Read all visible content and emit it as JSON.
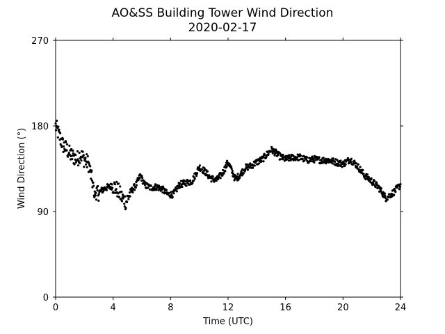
{
  "chart_data": {
    "type": "scatter",
    "title": "AO&SS Building Tower Wind Direction",
    "subtitle": "2020-02-17",
    "xlabel": "Time (UTC)",
    "ylabel": "Wind Direction (°)",
    "xlim": [
      0,
      24
    ],
    "ylim": [
      0,
      270
    ],
    "xticks": [
      0,
      4,
      8,
      12,
      16,
      20,
      24
    ],
    "yticks": [
      0,
      90,
      180,
      270
    ],
    "grid": false,
    "marker_color": "#000000",
    "series": [
      {
        "profile": [
          [
            0.0,
            180
          ],
          [
            0.2,
            172
          ],
          [
            0.5,
            160
          ],
          [
            0.8,
            155
          ],
          [
            1.0,
            150
          ],
          [
            1.2,
            148
          ],
          [
            1.5,
            145
          ],
          [
            1.7,
            150
          ],
          [
            2.0,
            145
          ],
          [
            2.3,
            140
          ],
          [
            2.5,
            125
          ],
          [
            2.7,
            112
          ],
          [
            3.0,
            110
          ],
          [
            3.5,
            115
          ],
          [
            4.0,
            117
          ],
          [
            4.3,
            113
          ],
          [
            4.6,
            105
          ],
          [
            4.9,
            100
          ],
          [
            5.2,
            110
          ],
          [
            5.6,
            118
          ],
          [
            5.9,
            128
          ],
          [
            6.2,
            118
          ],
          [
            6.6,
            115
          ],
          [
            7.0,
            116
          ],
          [
            7.4,
            114
          ],
          [
            7.8,
            108
          ],
          [
            8.2,
            108
          ],
          [
            8.6,
            118
          ],
          [
            9.0,
            120
          ],
          [
            9.5,
            122
          ],
          [
            10.0,
            137
          ],
          [
            10.4,
            132
          ],
          [
            10.8,
            125
          ],
          [
            11.2,
            123
          ],
          [
            11.6,
            130
          ],
          [
            12.0,
            142
          ],
          [
            12.2,
            135
          ],
          [
            12.5,
            124
          ],
          [
            12.8,
            128
          ],
          [
            13.2,
            136
          ],
          [
            13.6,
            138
          ],
          [
            14.0,
            142
          ],
          [
            14.4,
            145
          ],
          [
            14.7,
            150
          ],
          [
            15.0,
            155
          ],
          [
            15.3,
            152
          ],
          [
            15.6,
            148
          ],
          [
            16.0,
            145
          ],
          [
            16.5,
            147
          ],
          [
            17.0,
            147
          ],
          [
            17.5,
            144
          ],
          [
            18.0,
            145
          ],
          [
            18.5,
            144
          ],
          [
            19.0,
            144
          ],
          [
            19.5,
            142
          ],
          [
            20.0,
            140
          ],
          [
            20.5,
            145
          ],
          [
            21.0,
            138
          ],
          [
            21.5,
            128
          ],
          [
            22.0,
            122
          ],
          [
            22.5,
            115
          ],
          [
            23.0,
            104
          ],
          [
            23.5,
            110
          ],
          [
            24.0,
            118
          ]
        ],
        "scatter_spread": 3.5,
        "n_points": 900
      }
    ]
  }
}
